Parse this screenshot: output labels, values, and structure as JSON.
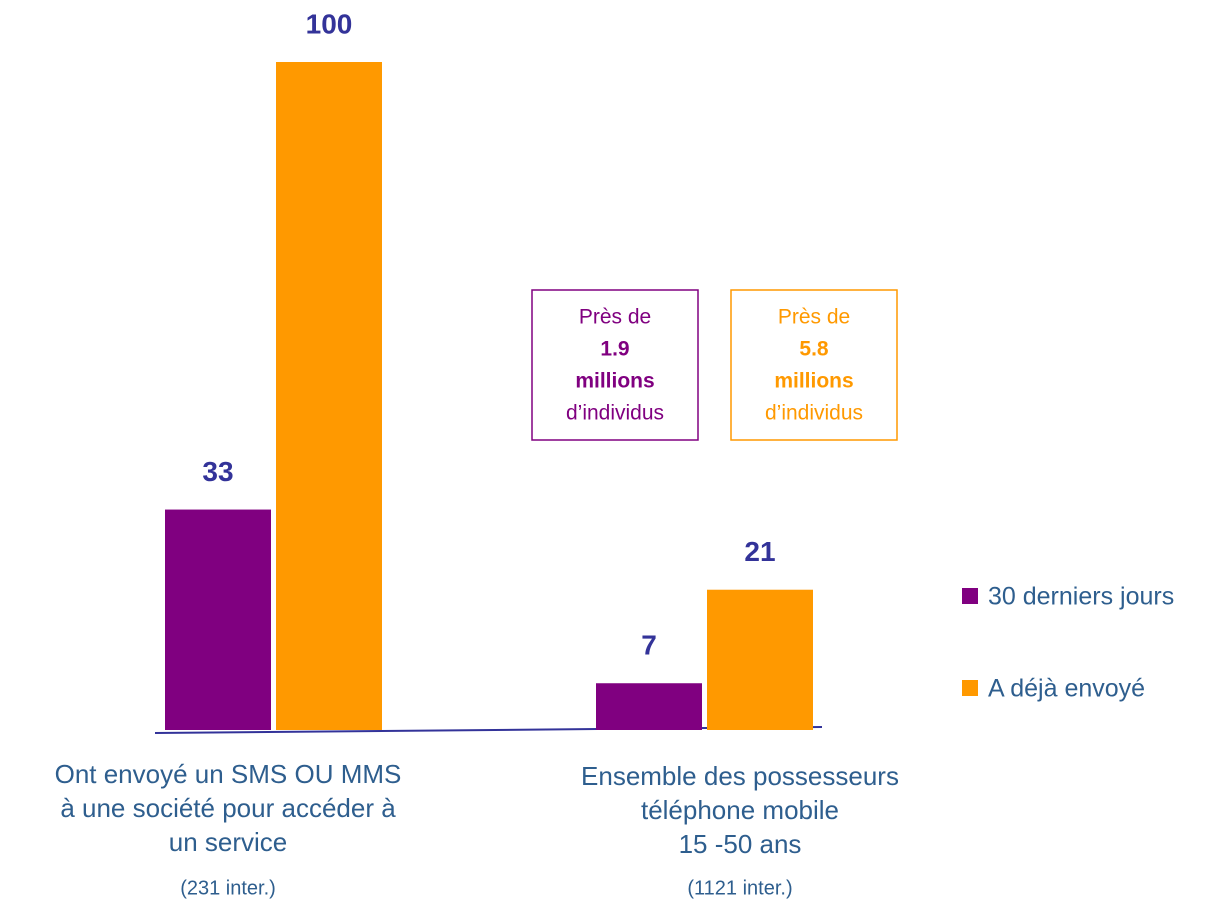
{
  "chart_data": {
    "type": "bar",
    "categories": [
      [
        "Ont envoyé un SMS OU MMS",
        "à une société pour accéder à",
        "un service"
      ],
      [
        "Ensemble des possesseurs",
        "téléphone mobile",
        "15 -50 ans"
      ]
    ],
    "category_notes": [
      "(231 inter.)",
      "(1121 inter.)"
    ],
    "series": [
      {
        "name": "30 derniers jours",
        "color": "#800080",
        "values": [
          33,
          7
        ]
      },
      {
        "name": "A déjà envoyé",
        "color": "#ff9900",
        "values": [
          100,
          21
        ]
      }
    ],
    "annotations": [
      {
        "lines": [
          "Près de",
          "1.9",
          "millions",
          "d’individus"
        ],
        "color": "#800080"
      },
      {
        "lines": [
          "Près de",
          "5.8",
          "millions",
          "d’individus"
        ],
        "color": "#ff9900"
      }
    ]
  }
}
